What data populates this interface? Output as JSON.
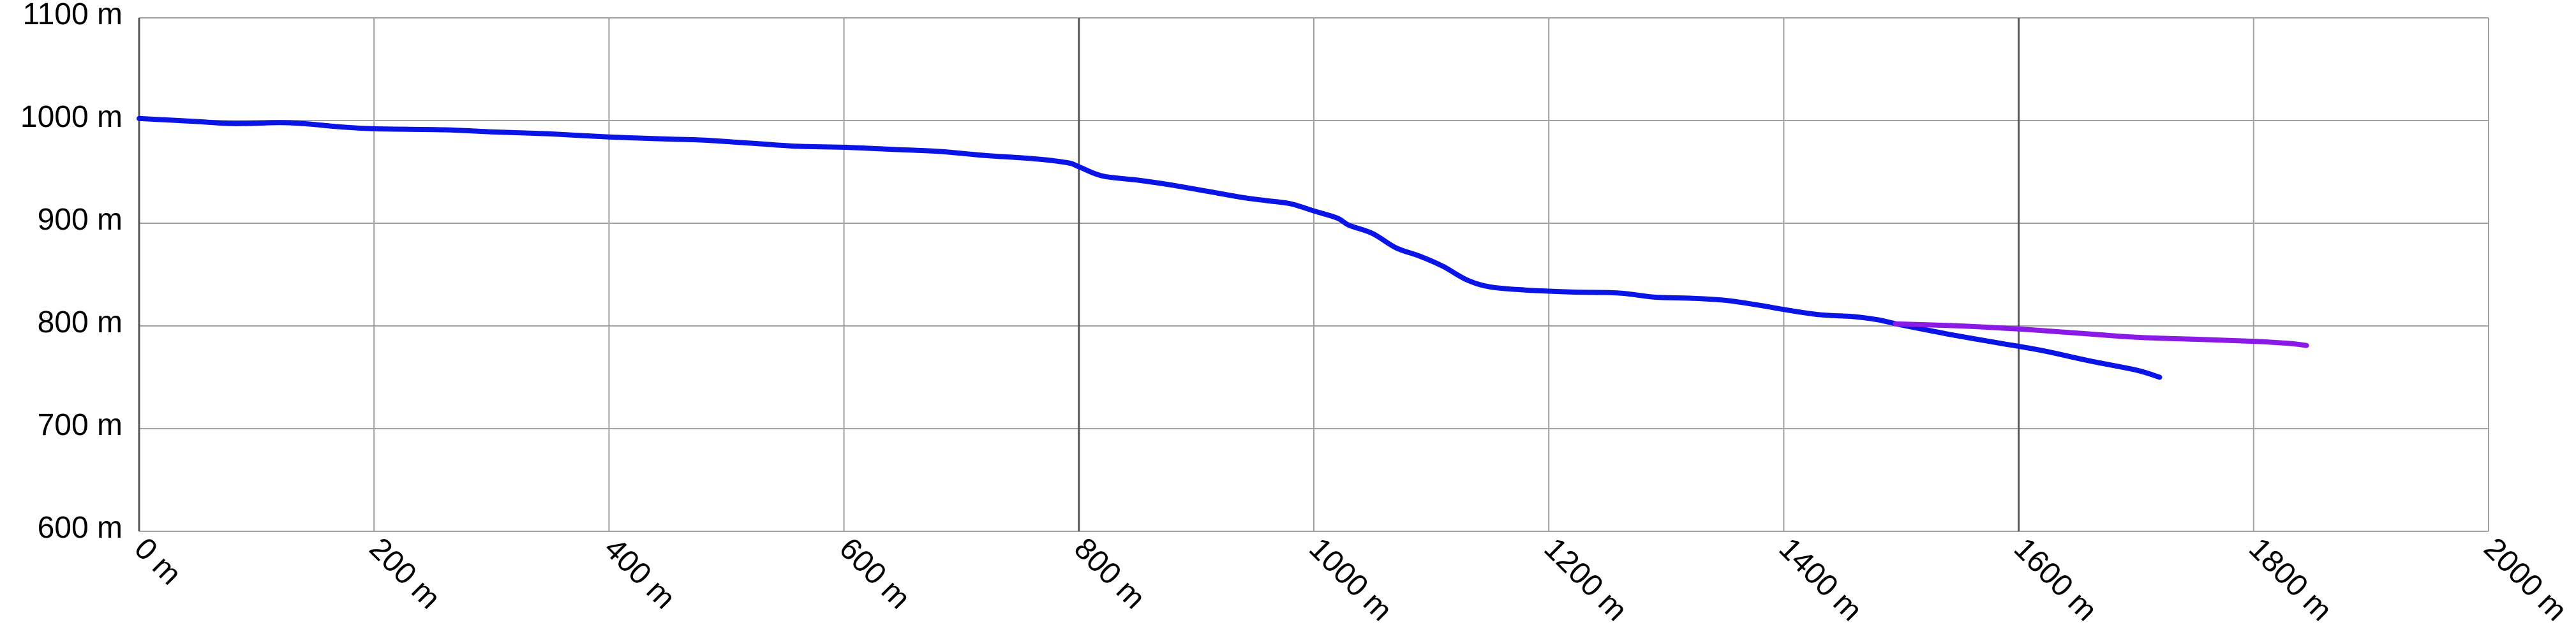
{
  "chart_data": {
    "type": "line",
    "title": "",
    "xlabel": "",
    "ylabel": "",
    "xlim": [
      0,
      2000
    ],
    "ylim": [
      600,
      1100
    ],
    "grid": true,
    "x_ticks": [
      {
        "value": 0,
        "label": "0 m"
      },
      {
        "value": 200,
        "label": "200 m"
      },
      {
        "value": 400,
        "label": "400 m"
      },
      {
        "value": 600,
        "label": "600 m"
      },
      {
        "value": 800,
        "label": "800 m"
      },
      {
        "value": 1000,
        "label": "1000 m"
      },
      {
        "value": 1200,
        "label": "1200 m"
      },
      {
        "value": 1400,
        "label": "1400 m"
      },
      {
        "value": 1600,
        "label": "1600 m"
      },
      {
        "value": 1800,
        "label": "1800 m"
      },
      {
        "value": 2000,
        "label": "2000 m"
      }
    ],
    "y_ticks": [
      {
        "value": 600,
        "label": "600 m"
      },
      {
        "value": 700,
        "label": "700 m"
      },
      {
        "value": 800,
        "label": "800 m"
      },
      {
        "value": 900,
        "label": "900 m"
      },
      {
        "value": 1000,
        "label": "1000 m"
      },
      {
        "value": 1100,
        "label": "1100 m"
      }
    ],
    "series": [
      {
        "color": "#0a14e6",
        "points": [
          [
            0,
            1002
          ],
          [
            50,
            999
          ],
          [
            80,
            997
          ],
          [
            120,
            998
          ],
          [
            140,
            997
          ],
          [
            170,
            994
          ],
          [
            200,
            992
          ],
          [
            260,
            991
          ],
          [
            300,
            989
          ],
          [
            350,
            987
          ],
          [
            400,
            984
          ],
          [
            450,
            982
          ],
          [
            480,
            981
          ],
          [
            520,
            978
          ],
          [
            560,
            975
          ],
          [
            600,
            974
          ],
          [
            640,
            972
          ],
          [
            680,
            970
          ],
          [
            720,
            966
          ],
          [
            760,
            963
          ],
          [
            790,
            959
          ],
          [
            800,
            955
          ],
          [
            820,
            946
          ],
          [
            850,
            942
          ],
          [
            880,
            937
          ],
          [
            910,
            931
          ],
          [
            940,
            925
          ],
          [
            960,
            922
          ],
          [
            980,
            919
          ],
          [
            1000,
            912
          ],
          [
            1020,
            905
          ],
          [
            1030,
            898
          ],
          [
            1050,
            890
          ],
          [
            1070,
            876
          ],
          [
            1090,
            868
          ],
          [
            1110,
            858
          ],
          [
            1130,
            845
          ],
          [
            1150,
            838
          ],
          [
            1180,
            835
          ],
          [
            1220,
            833
          ],
          [
            1260,
            832
          ],
          [
            1290,
            828
          ],
          [
            1320,
            827
          ],
          [
            1350,
            825
          ],
          [
            1380,
            820
          ],
          [
            1400,
            816
          ],
          [
            1430,
            811
          ],
          [
            1460,
            809
          ],
          [
            1480,
            806
          ],
          [
            1500,
            801
          ],
          [
            1540,
            792
          ],
          [
            1580,
            784
          ],
          [
            1620,
            776
          ],
          [
            1660,
            766
          ],
          [
            1700,
            757
          ],
          [
            1720,
            750
          ]
        ]
      },
      {
        "color": "#8b1ae6",
        "points": [
          [
            1495,
            802
          ],
          [
            1550,
            800
          ],
          [
            1600,
            797
          ],
          [
            1650,
            793
          ],
          [
            1700,
            789
          ],
          [
            1750,
            787
          ],
          [
            1800,
            785
          ],
          [
            1830,
            783
          ],
          [
            1845,
            781
          ]
        ]
      }
    ]
  }
}
